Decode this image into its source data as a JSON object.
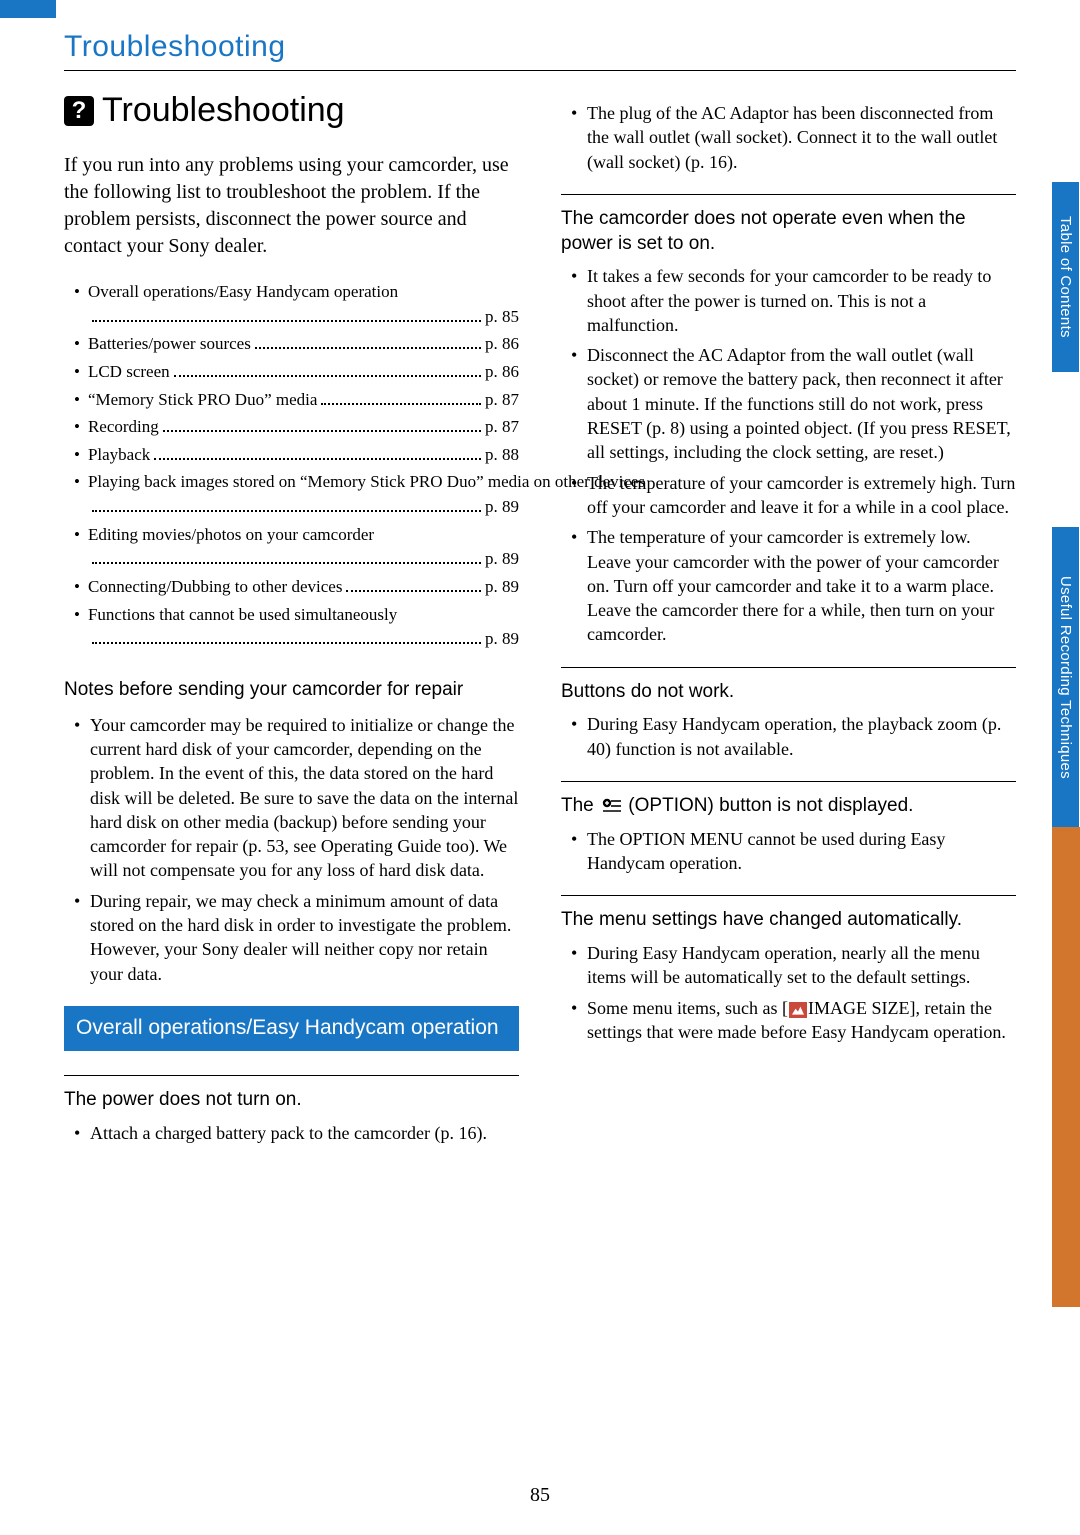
{
  "chapter_title": "Troubleshooting",
  "page_title": "Troubleshooting",
  "intro": "If you run into any problems using your camcorder, use the following list to troubleshoot the problem. If the problem persists, disconnect the power source and contact your Sony dealer.",
  "toc": [
    {
      "label": "Overall operations/Easy Handycam operation",
      "page": "p. 85",
      "wrap": true
    },
    {
      "label": "Batteries/power sources",
      "page": "p. 86"
    },
    {
      "label": "LCD screen",
      "page": "p. 86"
    },
    {
      "label": "“Memory Stick PRO Duo” media",
      "page": "p. 87"
    },
    {
      "label": "Recording",
      "page": "p. 87"
    },
    {
      "label": "Playback",
      "page": "p. 88"
    },
    {
      "label": "Playing back images stored on “Memory Stick PRO Duo” media on other devices",
      "page": "p. 89",
      "wrap": true
    },
    {
      "label": "Editing movies/photos on your camcorder",
      "page": "p. 89",
      "wrap": true
    },
    {
      "label": "Connecting/Dubbing to other devices",
      "page": "p. 89"
    },
    {
      "label": "Functions that cannot be used simultaneously",
      "page": "p. 89",
      "wrap": true
    }
  ],
  "notes_heading": "Notes before sending your camcorder for repair",
  "notes": [
    "Your camcorder may be required to initialize or change the current hard disk of your camcorder, depending on the problem. In the event of this, the data stored on the hard disk will be deleted. Be sure to save the data on the internal hard disk on other media (backup) before sending your camcorder for repair (p. 53, see Operating Guide too). We will not compensate you for any loss of hard disk data.",
    "During repair, we may check a minimum amount of data stored on the hard disk in order to investigate the problem. However, your Sony dealer will neither copy nor retain your data."
  ],
  "section_bar": "Overall operations/Easy Handycam operation",
  "issues_left": [
    {
      "title": "The power does not turn on.",
      "bullets": [
        "Attach a charged battery pack to the camcorder (p. 16)."
      ]
    }
  ],
  "issues_right_first_bullets": [
    "The plug of the AC Adaptor has been disconnected from the wall outlet (wall socket). Connect it to the wall outlet (wall socket) (p. 16)."
  ],
  "issues_right": [
    {
      "title": "The camcorder does not operate even when the power is set to on.",
      "bullets": [
        "It takes a few seconds for your camcorder to be ready to shoot after the power is turned on. This is not a malfunction.",
        "Disconnect the AC Adaptor from the wall outlet (wall socket) or remove the battery pack, then reconnect it after about 1 minute. If the functions still do not work, press RESET (p. 8) using a pointed object. (If you press RESET, all settings, including the clock setting, are reset.)",
        "The temperature of your camcorder is extremely high. Turn off your camcorder and leave it for a while in a cool place.",
        "The temperature of your camcorder is extremely low. Leave your camcorder with the power of your camcorder on. Turn off your camcorder and take it to a warm place. Leave the camcorder there for a while, then turn on your camcorder."
      ]
    },
    {
      "title": "Buttons do not work.",
      "bullets": [
        "During Easy Handycam operation, the playback zoom (p. 40) function is not available."
      ]
    },
    {
      "title_pre": "The ",
      "title_post": " (OPTION) button is not displayed.",
      "has_option_icon": true,
      "bullets": [
        "The OPTION MENU cannot be used during Easy Handycam operation."
      ]
    },
    {
      "title": "The menu settings have changed automatically.",
      "bullets": [
        "During Easy Handycam operation, nearly all the menu items will be automatically set to the default settings."
      ],
      "bullets_html": [
        {
          "pre": "Some menu items, such as [",
          "icon": "image-size-icon",
          "post": "IMAGE SIZE], retain the settings that were made before Easy Handycam operation."
        }
      ]
    }
  ],
  "page_number": "85",
  "side_tabs": {
    "tab1": "Table of Contents",
    "tab2": "Useful Recording Techniques"
  }
}
